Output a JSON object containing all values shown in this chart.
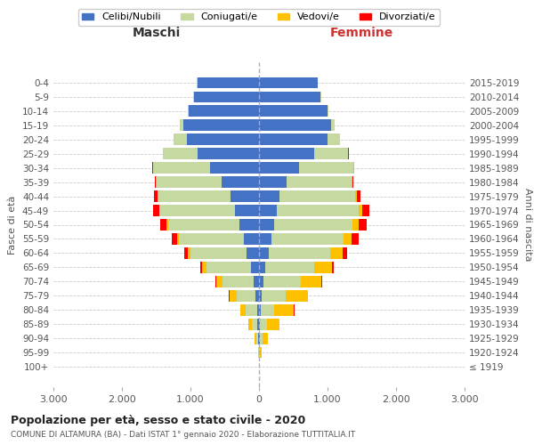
{
  "age_groups": [
    "100+",
    "95-99",
    "90-94",
    "85-89",
    "80-84",
    "75-79",
    "70-74",
    "65-69",
    "60-64",
    "55-59",
    "50-54",
    "45-49",
    "40-44",
    "35-39",
    "30-34",
    "25-29",
    "20-24",
    "15-19",
    "10-14",
    "5-9",
    "0-4"
  ],
  "birth_years": [
    "≤ 1919",
    "1920-1924",
    "1925-1929",
    "1930-1934",
    "1935-1939",
    "1940-1944",
    "1945-1949",
    "1950-1954",
    "1955-1959",
    "1960-1964",
    "1965-1969",
    "1970-1974",
    "1975-1979",
    "1980-1984",
    "1985-1989",
    "1990-1994",
    "1995-1999",
    "2000-2004",
    "2005-2009",
    "2010-2014",
    "2015-2019"
  ],
  "maschi": {
    "celibi": [
      2,
      5,
      10,
      20,
      30,
      50,
      80,
      120,
      180,
      220,
      280,
      350,
      420,
      550,
      720,
      900,
      1050,
      1100,
      1020,
      950,
      900
    ],
    "coniugati": [
      1,
      5,
      30,
      80,
      160,
      280,
      450,
      650,
      820,
      950,
      1050,
      1100,
      1050,
      950,
      820,
      500,
      200,
      60,
      20,
      5,
      3
    ],
    "vedovi": [
      1,
      4,
      20,
      50,
      80,
      100,
      90,
      60,
      40,
      25,
      15,
      10,
      5,
      3,
      2,
      1,
      1,
      0,
      0,
      0,
      0
    ],
    "divorziati": [
      0,
      0,
      1,
      2,
      4,
      6,
      15,
      30,
      50,
      80,
      100,
      90,
      60,
      20,
      10,
      5,
      2,
      0,
      0,
      0,
      0
    ]
  },
  "femmine": {
    "nubili": [
      2,
      5,
      10,
      15,
      25,
      40,
      60,
      90,
      140,
      180,
      220,
      260,
      300,
      400,
      580,
      800,
      1000,
      1050,
      1000,
      900,
      860
    ],
    "coniugate": [
      1,
      10,
      40,
      100,
      200,
      350,
      550,
      720,
      900,
      1050,
      1150,
      1200,
      1100,
      950,
      800,
      500,
      180,
      50,
      15,
      5,
      3
    ],
    "vedove": [
      3,
      20,
      80,
      180,
      280,
      320,
      300,
      250,
      180,
      120,
      80,
      50,
      25,
      10,
      5,
      2,
      1,
      0,
      0,
      0,
      0
    ],
    "divorziate": [
      0,
      0,
      2,
      4,
      8,
      10,
      15,
      25,
      60,
      100,
      120,
      100,
      60,
      20,
      10,
      5,
      2,
      0,
      0,
      0,
      0
    ]
  },
  "colors": {
    "celibi": "#4472c4",
    "coniugati": "#c5d9a0",
    "vedovi": "#ffc000",
    "divorziati": "#ff0000"
  },
  "title": "Popolazione per età, sesso e stato civile - 2020",
  "subtitle": "COMUNE DI ALTAMURA (BA) - Dati ISTAT 1° gennaio 2020 - Elaborazione TUTTITALIA.IT",
  "xlabel_left": "Maschi",
  "xlabel_right": "Femmine",
  "ylabel_left": "Fasce di età",
  "ylabel_right": "Anni di nascita",
  "xlim": 3000,
  "legend_labels": [
    "Celibi/Nubili",
    "Coniugati/e",
    "Vedovi/e",
    "Divorziati/e"
  ],
  "bg_color": "#ffffff",
  "grid_color": "#cccccc"
}
